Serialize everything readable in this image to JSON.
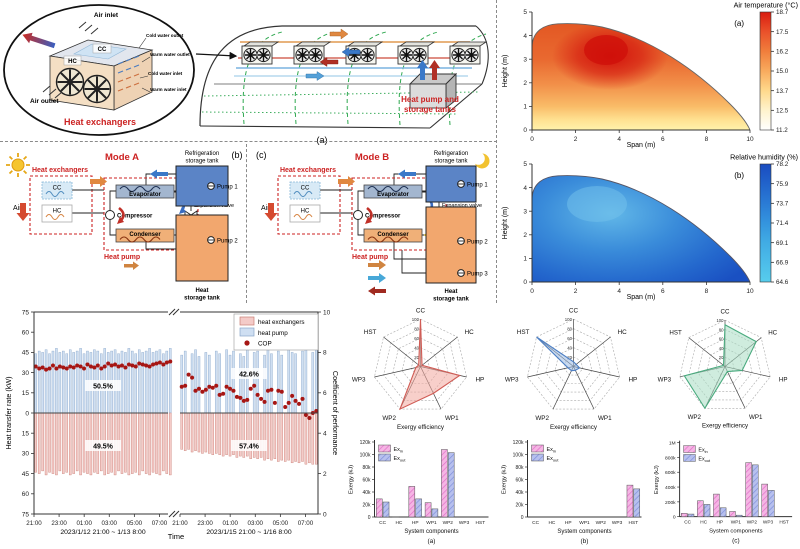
{
  "colors": {
    "accent_red": "#cc2222",
    "hx_bar": "#f4cbc8",
    "hx_edge": "#c97f76",
    "hp_bar": "#cfdff2",
    "hp_edge": "#8aa6c9",
    "cop_dot": "#a61614",
    "tank_blue": "#5b84c6",
    "tank_orange": "#f2a76e"
  },
  "hx_detail": {
    "air_inlet": "Air inlet",
    "cold_water_outlet": "Cold water outlet",
    "warm_water_outlet": "Warm water outlet",
    "cold_water_inlet": "Cold water inlet",
    "warm_water_inlet": "Warm water inlet",
    "air_outlet": "Air outlet",
    "cc": "CC",
    "hc": "HC",
    "title": "Heat exchangers"
  },
  "greenhouse": {
    "label_lines": [
      "Heat pump and",
      "storage tanks"
    ],
    "panel_label": "(a)"
  },
  "mode_a": {
    "title": "Mode A",
    "panel_label": "(b)",
    "heat_exchangers": "Heat exchangers",
    "cc": "CC",
    "hc": "HC",
    "air": "Air",
    "evaporator": "Evaporator",
    "compressor": "Compressor",
    "condenser": "Condenser",
    "expansion_valve": "Expansion valve",
    "heat_pump": "Heat pump",
    "refrigeration_tank_lines": [
      "Refrigeration",
      "storage tank"
    ],
    "heat_tank_lines": [
      "Heat",
      "storage tank"
    ],
    "pump1": "Pump 1",
    "pump2": "Pump 2"
  },
  "mode_b": {
    "title": "Mode B",
    "panel_label": "(c)",
    "heat_exchangers": "Heat exchangers",
    "cc": "CC",
    "hc": "HC",
    "air": "Air",
    "evaporator": "Evaporator",
    "compressor": "Compressor",
    "condenser": "Condenser",
    "expansion_valve": "Expansion valve",
    "heat_pump": "Heat pump",
    "refrigeration_tank_lines": [
      "Refrigeration",
      "storage tank"
    ],
    "heat_tank_lines": [
      "Heat",
      "storage tank"
    ],
    "pump1": "Pump 1",
    "pump2": "Pump 2",
    "pump3": "Pump 3"
  },
  "chart_data": [
    {
      "id": "air_temperature_contour",
      "type": "heatmap",
      "title": "Air temperature (°C)",
      "panel_label": "(a)",
      "xlabel": "Span (m)",
      "ylabel": "Height (m)",
      "xlim": [
        0,
        10
      ],
      "ylim": [
        0,
        5
      ],
      "xticks": [
        0,
        2,
        4,
        6,
        8,
        10
      ],
      "yticks": [
        0,
        1,
        2,
        3,
        4,
        5
      ],
      "colorbar_ticks": [
        18.7,
        17.5,
        16.2,
        15.0,
        13.7,
        12.5,
        11.2
      ],
      "colorbar_colors": [
        "#d91c10",
        "#ea512a",
        "#f07e3c",
        "#f8ab5e",
        "#ffd98c",
        "#fff3cd",
        "#ffffff"
      ]
    },
    {
      "id": "relative_humidity_contour",
      "type": "heatmap",
      "title": "Relative humidity (%)",
      "panel_label": "(b)",
      "xlabel": "Span (m)",
      "ylabel": "Height (m)",
      "xlim": [
        0,
        10
      ],
      "ylim": [
        0,
        5
      ],
      "xticks": [
        0,
        2,
        4,
        6,
        8,
        10
      ],
      "yticks": [
        0,
        1,
        2,
        3,
        4,
        5
      ],
      "colorbar_ticks": [
        78.2,
        75.9,
        73.7,
        71.4,
        69.1,
        66.9,
        64.6
      ],
      "colorbar_colors": [
        "#1a4cc0",
        "#2163cb",
        "#2a7bd5",
        "#3494de",
        "#41ace4",
        "#4cbce9",
        "#57cdec"
      ]
    },
    {
      "id": "heat_transfer_cop",
      "type": "bar",
      "ylabel_left": "Heat transfer rate (kW)",
      "ylabel_right": "Coefficient of performance",
      "xlabel": "Time",
      "yticks_left": [
        "75",
        "60",
        "45",
        "30",
        "15",
        "0",
        "15",
        "30",
        "45",
        "60",
        "75"
      ],
      "yticks_right": [
        "10",
        "8",
        "6",
        "4",
        "2",
        "0"
      ],
      "xticks": [
        "21:00",
        "23:00",
        "01:00",
        "03:00",
        "05:00",
        "07:00"
      ],
      "period1_label": "2023/1/12 21:00 ~ 1/13 8:00",
      "period2_label": "2023/1/15 21:00 ~ 1/16 8:00",
      "legend": [
        "heat exchangers",
        "heat pump",
        "COP"
      ],
      "annotations": {
        "p1_hp": "50.5%",
        "p1_hx": "49.5%",
        "p2_hp": "42.6%",
        "p2_hx": "57.4%"
      },
      "period1": {
        "heat_pump": [
          44,
          46,
          45,
          47,
          44,
          46,
          48,
          45,
          46,
          44,
          47,
          45,
          46,
          48,
          44,
          46,
          45,
          47,
          46,
          44,
          48,
          45,
          46,
          47,
          44,
          46,
          45,
          48,
          46,
          44,
          47,
          45,
          46,
          48,
          45,
          46,
          47,
          44,
          46,
          48
        ],
        "heat_exchangers": [
          -44,
          -45,
          -43,
          -46,
          -44,
          -45,
          -46,
          -43,
          -45,
          -44,
          -46,
          -45,
          -43,
          -46,
          -44,
          -45,
          -46,
          -44,
          -45,
          -43,
          -46,
          -45,
          -44,
          -46,
          -43,
          -45,
          -44,
          -46,
          -45,
          -44,
          -46,
          -43,
          -45,
          -46,
          -44,
          -45,
          -46,
          -43,
          -45,
          -46
        ],
        "cop": [
          7.3,
          7.2,
          7.25,
          7.15,
          7.2,
          7.35,
          7.2,
          7.3,
          7.25,
          7.2,
          7.3,
          7.25,
          7.35,
          7.3,
          7.2,
          7.4,
          7.3,
          7.25,
          7.35,
          7.2,
          7.3,
          7.45,
          7.35,
          7.4,
          7.3,
          7.35,
          7.25,
          7.4,
          7.35,
          7.3,
          7.45,
          7.4,
          7.35,
          7.3,
          7.4,
          7.45,
          7.5,
          7.4,
          7.5,
          7.55
        ]
      },
      "period2": {
        "heat_pump": [
          43,
          46,
          0,
          44,
          47,
          42,
          0,
          45,
          43,
          0,
          46,
          44,
          0,
          47,
          43,
          46,
          0,
          44,
          42,
          47,
          0,
          45,
          46,
          0,
          43,
          47,
          44,
          0,
          46,
          43,
          0,
          47,
          45,
          44,
          0,
          46,
          47,
          0,
          45,
          47
        ],
        "heat_exchangers": [
          -27,
          -28,
          -27,
          -29,
          -28,
          -29,
          -30,
          -29,
          -30,
          -31,
          -30,
          -31,
          -32,
          -31,
          -32,
          -31,
          -33,
          -32,
          -33,
          -32,
          -34,
          -33,
          -34,
          -33,
          -35,
          -34,
          -35,
          -34,
          -36,
          -35,
          -36,
          -35,
          -37,
          -36,
          -37,
          -36,
          -38,
          -37,
          -38,
          -38
        ],
        "cop": [
          6.3,
          6.35,
          6.9,
          6.75,
          6.1,
          6.2,
          6.05,
          6.15,
          6.3,
          6.25,
          6.35,
          5.9,
          5.95,
          6.3,
          6.2,
          6.1,
          5.8,
          5.75,
          5.6,
          5.65,
          6.2,
          6.35,
          5.9,
          5.7,
          5.55,
          6.1,
          6.15,
          5.5,
          6.1,
          6.05,
          5.3,
          5.5,
          5.85,
          5.6,
          5.45,
          5.7,
          4.9,
          4.75,
          5.0,
          5.1
        ]
      }
    },
    {
      "id": "radar_mode_a",
      "type": "radar",
      "categories": [
        "CC",
        "HC",
        "HP",
        "WP1",
        "WP2",
        "WP3",
        "HST"
      ],
      "values": [
        100,
        4,
        85,
        63,
        100,
        10,
        5
      ],
      "rticks": [
        20,
        40,
        60,
        80,
        100
      ],
      "xlabel": "Exergy efficiency",
      "stroke": "#d05c55",
      "fill": "#f3a79f"
    },
    {
      "id": "radar_storage",
      "type": "radar",
      "categories": [
        "CC",
        "HC",
        "HP",
        "WP1",
        "WP2",
        "WP3",
        "HST"
      ],
      "values": [
        10,
        7,
        13,
        9,
        10,
        12,
        100
      ],
      "rticks": [
        20,
        40,
        60,
        80,
        100
      ],
      "xlabel": "Exergy efficiency",
      "stroke": "#4d7fc4",
      "fill": "#9dbce4"
    },
    {
      "id": "radar_mode_b",
      "type": "radar",
      "categories": [
        "CC",
        "HC",
        "HP",
        "WP1",
        "WP2",
        "WP3",
        "HST"
      ],
      "values": [
        90,
        86,
        38,
        12,
        100,
        90,
        4
      ],
      "rticks": [
        20,
        40,
        60,
        80,
        100
      ],
      "xlabel": "Exergy efficiency",
      "stroke": "#49aa7e",
      "fill": "#a8dcc2"
    },
    {
      "id": "exergy_bars_a",
      "type": "bar",
      "panel_label": "(a)",
      "categories": [
        "CC",
        "HC",
        "HP",
        "WP1",
        "WP2",
        "WP3",
        "HST"
      ],
      "series": [
        {
          "name": "Ex_in",
          "values": [
            29000,
            500,
            49000,
            23000,
            108000,
            300,
            200
          ],
          "color": "#f5b5e4",
          "hatch": "#e070c8"
        },
        {
          "name": "Ex_out",
          "values": [
            24000,
            300,
            29000,
            13000,
            103000,
            200,
            100
          ],
          "color": "#b7c0ee",
          "hatch": "#8090da"
        }
      ],
      "ylabel": "Exergy (kJ)",
      "xlabel": "System components",
      "yticks": [
        "0",
        "20k",
        "40k",
        "60k",
        "80k",
        "100k",
        "120k"
      ],
      "ylim": [
        0,
        120000
      ]
    },
    {
      "id": "exergy_bars_b",
      "type": "bar",
      "panel_label": "(b)",
      "categories": [
        "CC",
        "HC",
        "HP",
        "WP1",
        "WP2",
        "WP3",
        "HST"
      ],
      "series": [
        {
          "name": "Ex_in",
          "values": [
            0,
            0,
            0,
            0,
            0,
            0,
            51000
          ],
          "color": "#f5b5e4",
          "hatch": "#e070c8"
        },
        {
          "name": "Ex_out",
          "values": [
            0,
            0,
            0,
            0,
            0,
            0,
            45000
          ],
          "color": "#b7c0ee",
          "hatch": "#8090da"
        }
      ],
      "ylabel": "Exergy (kJ)",
      "xlabel": "System components",
      "yticks": [
        "0",
        "20k",
        "40k",
        "60k",
        "80k",
        "100k",
        "120k"
      ],
      "ylim": [
        0,
        120000
      ]
    },
    {
      "id": "exergy_bars_c",
      "type": "bar",
      "panel_label": "(c)",
      "categories": [
        "CC",
        "HC",
        "HP",
        "WP1",
        "WP2",
        "WP3",
        "HST"
      ],
      "series": [
        {
          "name": "Ex_in",
          "values": [
            45000,
            215000,
            305000,
            70000,
            730000,
            440000,
            3000
          ],
          "color": "#f5b5e4",
          "hatch": "#e070c8"
        },
        {
          "name": "Ex_out",
          "values": [
            35000,
            165000,
            120000,
            20000,
            700000,
            355000,
            2000
          ],
          "color": "#b7c0ee",
          "hatch": "#8090da"
        }
      ],
      "ylabel": "Exergy (kJ)",
      "xlabel": "System components",
      "yticks": [
        "0",
        "200k",
        "400k",
        "600k",
        "800k",
        "1M"
      ],
      "ylim": [
        0,
        1000000
      ]
    }
  ]
}
